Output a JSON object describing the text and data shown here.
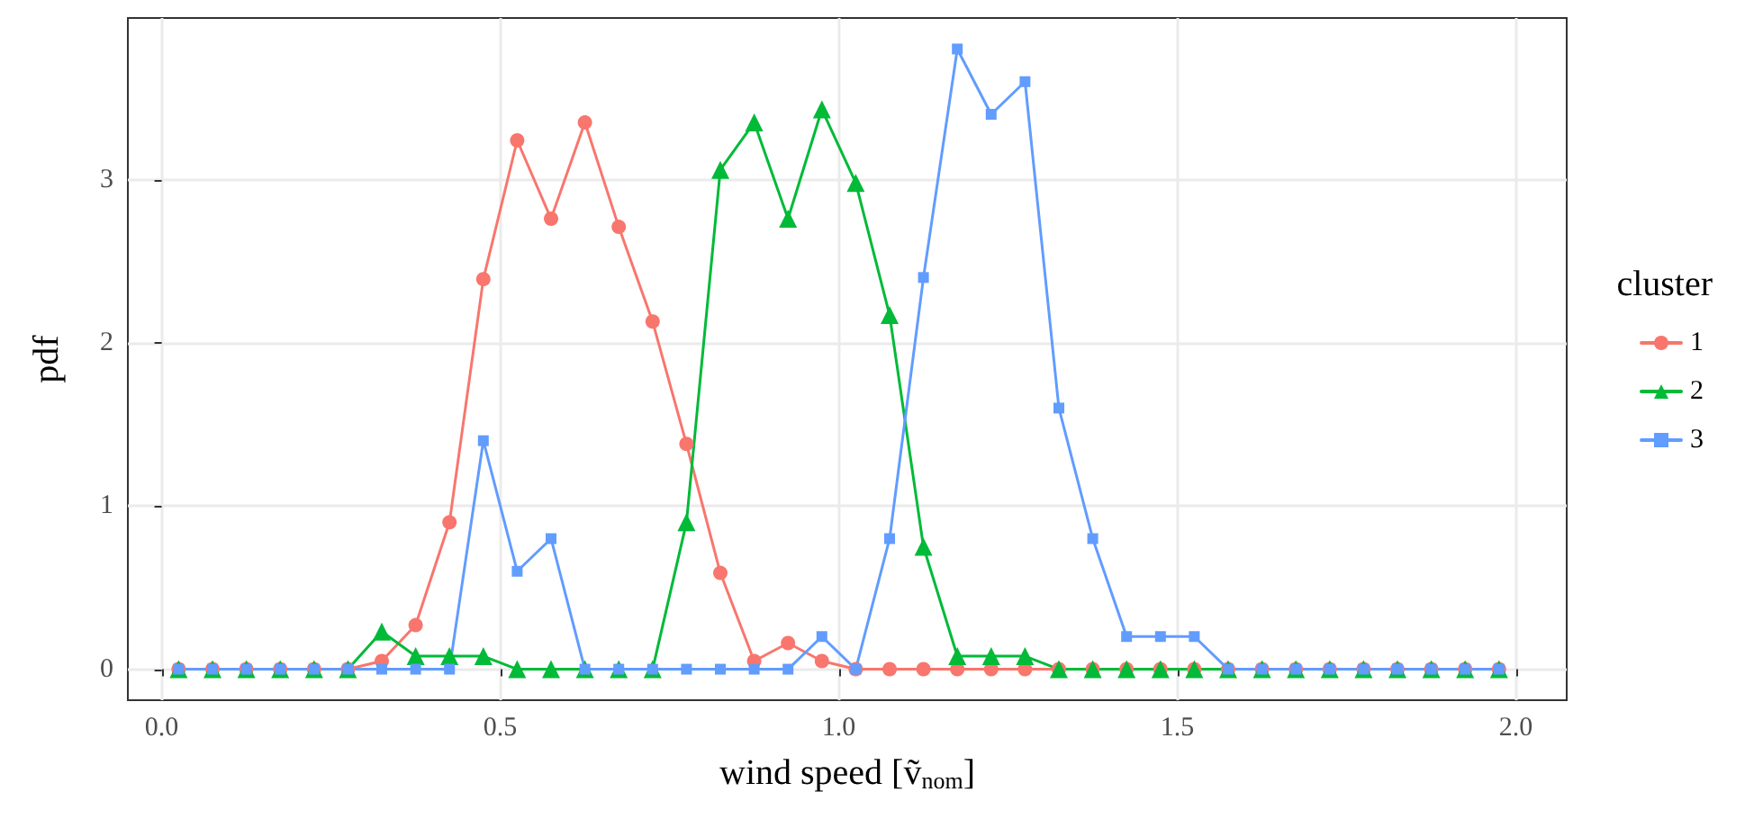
{
  "chart_data": {
    "type": "line",
    "xlabel": "wind speed [ṽ$_{nom}$]",
    "ylabel": "pdf",
    "legend_title": "cluster",
    "legend": "right",
    "grid": true,
    "x": [
      0.025,
      0.075,
      0.125,
      0.175,
      0.225,
      0.275,
      0.325,
      0.375,
      0.425,
      0.475,
      0.525,
      0.575,
      0.625,
      0.675,
      0.725,
      0.775,
      0.825,
      0.875,
      0.925,
      0.975,
      1.025,
      1.075,
      1.125,
      1.175,
      1.225,
      1.275,
      1.325,
      1.375,
      1.425,
      1.475,
      1.525,
      1.575,
      1.625,
      1.675,
      1.725,
      1.775,
      1.825,
      1.875,
      1.925,
      1.975
    ],
    "xlim": [
      -0.05,
      2.075
    ],
    "xticks": [
      {
        "value": 0,
        "label": "0.0"
      },
      {
        "value": 0.5,
        "label": "0.5"
      },
      {
        "value": 1,
        "label": "1.0"
      },
      {
        "value": 1.5,
        "label": "1.5"
      },
      {
        "value": 2,
        "label": "2.0"
      }
    ],
    "ylim": [
      -0.19,
      3.99
    ],
    "yticks": [
      0,
      1,
      2,
      3
    ],
    "series": [
      {
        "name": "1",
        "color": "#f8766d",
        "marker": "circle",
        "values": [
          0,
          0,
          0,
          0,
          0,
          0,
          0.05,
          0.27,
          0.9,
          2.39,
          3.24,
          2.76,
          3.35,
          2.71,
          2.13,
          1.38,
          0.59,
          0.05,
          0.16,
          0.05,
          0,
          0,
          0,
          0,
          0,
          0,
          0,
          0,
          0,
          0,
          0,
          0,
          0,
          0,
          0,
          0,
          0,
          0,
          0,
          0
        ]
      },
      {
        "name": "2",
        "color": "#00ba38",
        "marker": "triangle",
        "values": [
          0,
          0,
          0,
          0,
          0,
          0,
          0.23,
          0.08,
          0.08,
          0.08,
          0,
          0,
          0,
          0,
          0,
          0.9,
          3.06,
          3.35,
          2.76,
          3.43,
          2.98,
          2.17,
          0.75,
          0.08,
          0.08,
          0.08,
          0,
          0,
          0,
          0,
          0,
          0,
          0,
          0,
          0,
          0,
          0,
          0,
          0,
          0
        ]
      },
      {
        "name": "3",
        "color": "#619cff",
        "marker": "square",
        "values": [
          0,
          0,
          0,
          0,
          0,
          0,
          0,
          0,
          0,
          1.4,
          0.6,
          0.8,
          0,
          0,
          0,
          0,
          0,
          0,
          0,
          0.2,
          0,
          0.8,
          2.4,
          3.8,
          3.4,
          3.6,
          1.6,
          0.8,
          0.2,
          0.2,
          0.2,
          0,
          0,
          0,
          0,
          0,
          0,
          0,
          0,
          0
        ]
      }
    ]
  }
}
